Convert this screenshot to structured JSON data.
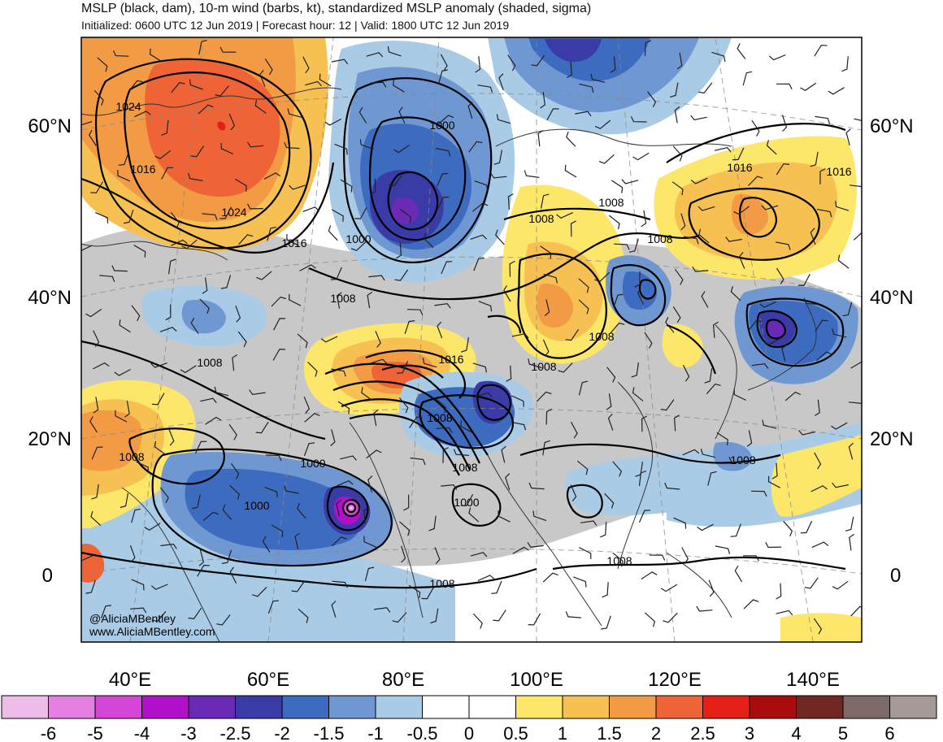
{
  "header": {
    "title": "MSLP (black, dam), 10-m wind (barbs, kt), standardized MSLP anomaly (shaded, sigma)",
    "subtitle": "Initialized: 0600 UTC 12 Jun 2019 | Forecast hour: 12 | Valid: 1800 UTC 12 Jun 2019"
  },
  "credits": {
    "handle": "@AliciaMBentley",
    "site": "www.AliciaMBentley.com"
  },
  "axes": {
    "lat_labels": [
      "60°N",
      "40°N",
      "20°N",
      "0"
    ],
    "lon_labels": [
      "40°E",
      "60°E",
      "80°E",
      "100°E",
      "120°E",
      "140°E"
    ]
  },
  "contour_labels": [
    "1024",
    "1016",
    "1024",
    "1016",
    "1000",
    "1000",
    "1008",
    "1008",
    "1008",
    "1016",
    "1016",
    "1008",
    "1008",
    "1008",
    "1008",
    "1016",
    "1008",
    "1000",
    "1000",
    "1008",
    "1000",
    "1008",
    "1008",
    "1008",
    "1008"
  ],
  "colorbar": {
    "ticks": [
      "-6",
      "-5",
      "-4",
      "-3",
      "-2.5",
      "-2",
      "-1.5",
      "-1",
      "-0.5",
      "0",
      "0.5",
      "1",
      "1.5",
      "2",
      "2.5",
      "3",
      "4",
      "5",
      "6"
    ],
    "colors": [
      "#ebbde8",
      "#e480e0",
      "#d346d6",
      "#b010c8",
      "#6a2ab6",
      "#3a3ba6",
      "#3d6bbf",
      "#6f97d2",
      "#a9cbe6",
      "#ffffff",
      "#ffffff",
      "#fce76a",
      "#f6c152",
      "#f39a45",
      "#ee6437",
      "#e31f18",
      "#a90c0c",
      "#722822",
      "#7b6a67",
      "#a69a98"
    ]
  }
}
